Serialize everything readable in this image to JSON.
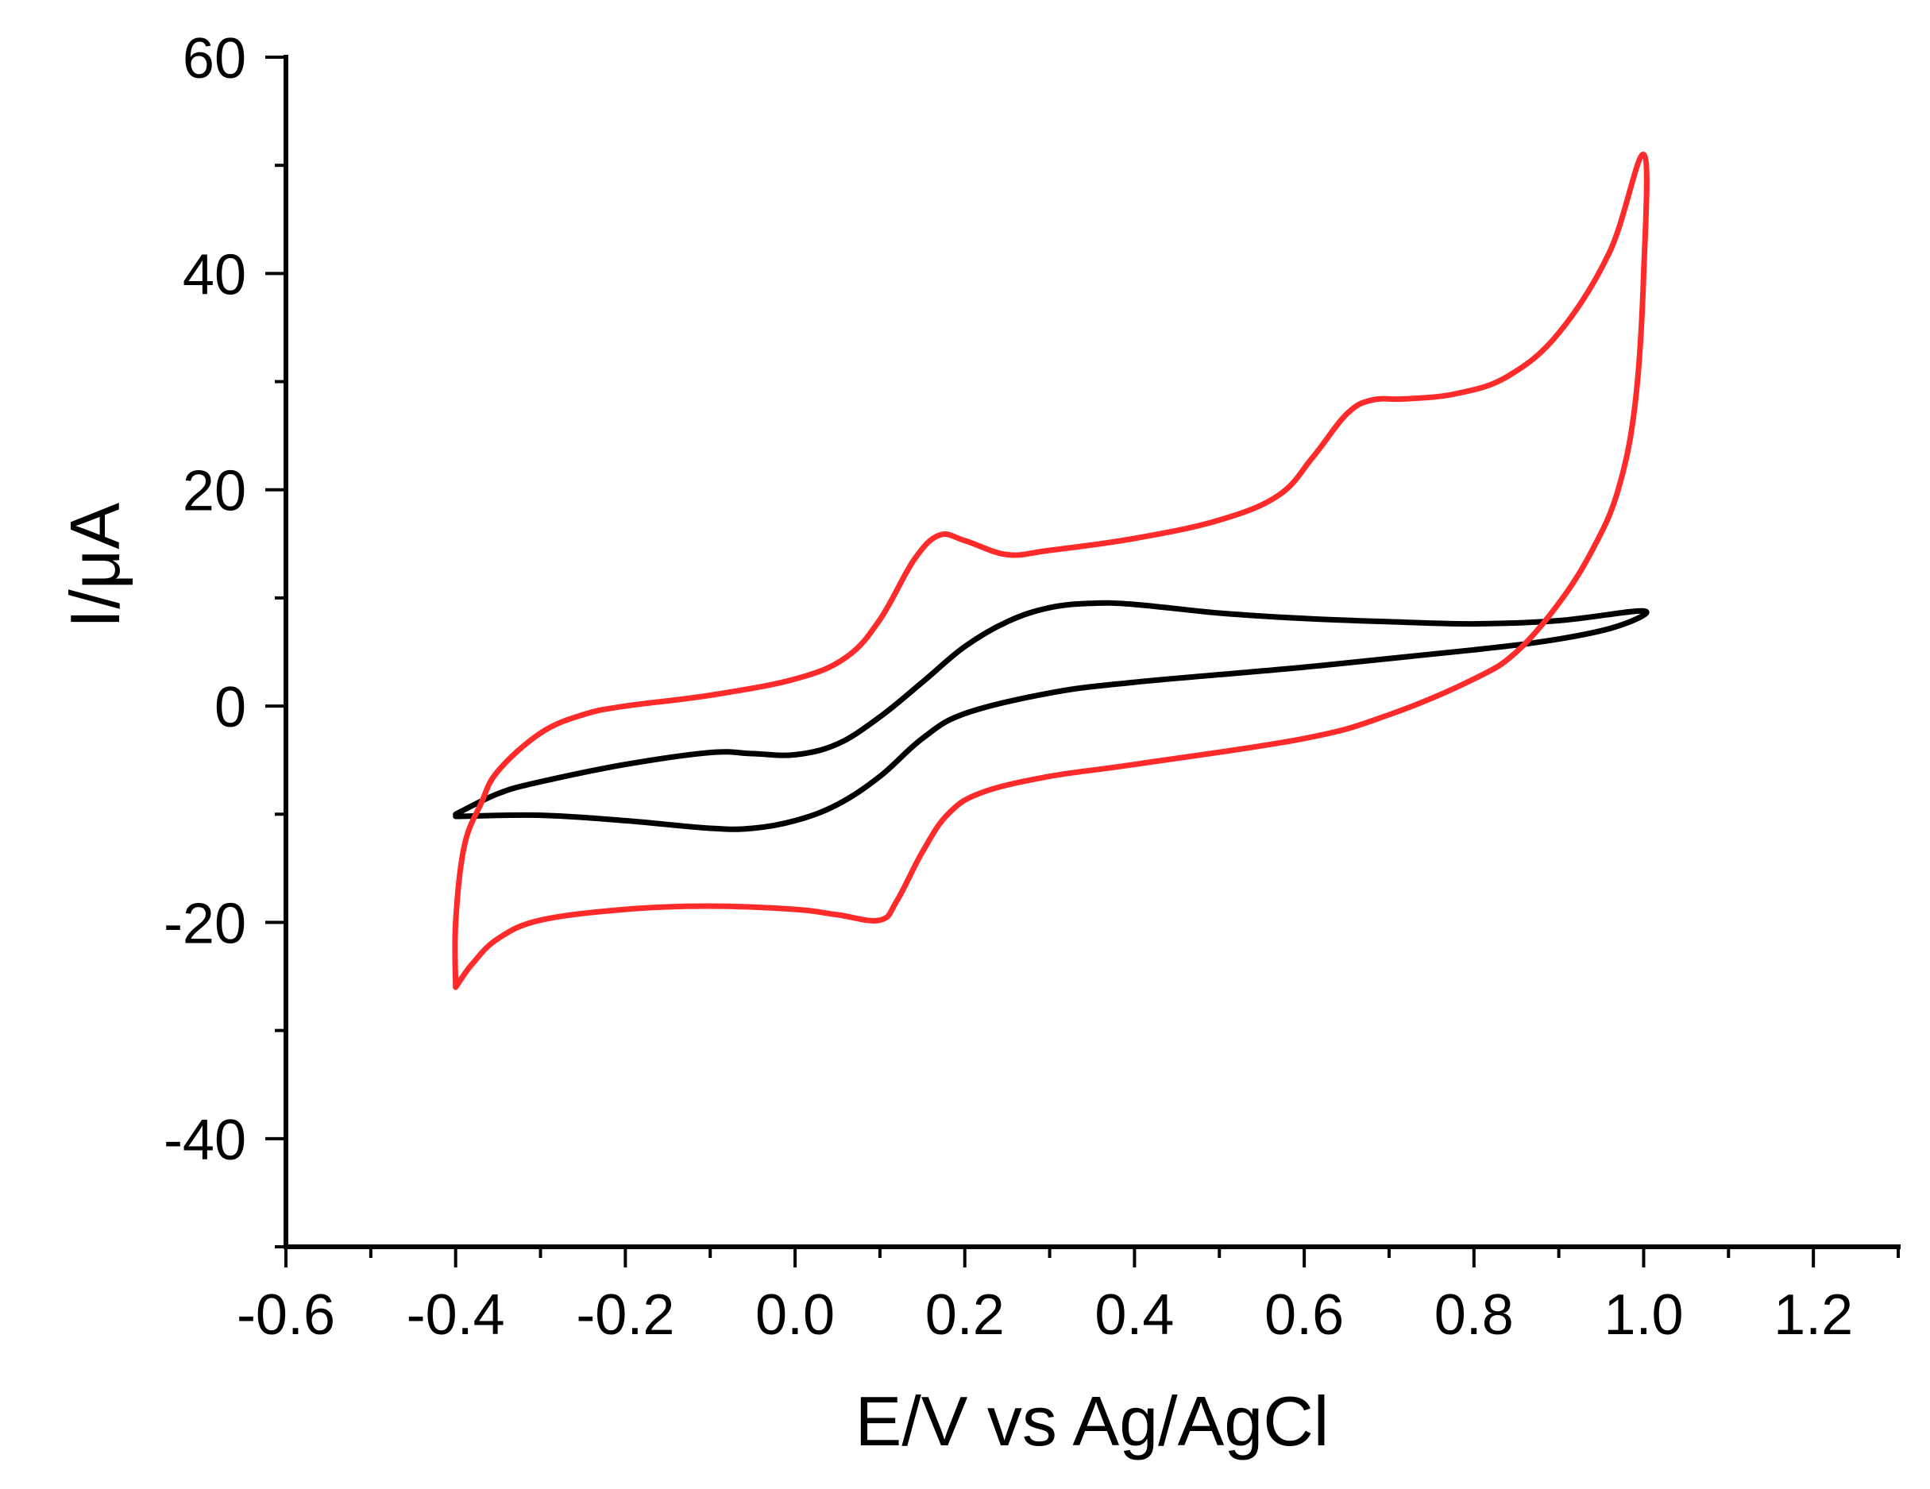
{
  "chart_data": {
    "type": "line",
    "title": "",
    "xlabel": "E/V vs Ag/AgCl",
    "ylabel": "I/μA",
    "xlim": [
      -0.6,
      1.3
    ],
    "ylim": [
      -50,
      60
    ],
    "x_ticks": [
      -0.6,
      -0.4,
      -0.2,
      0.0,
      0.2,
      0.4,
      0.6,
      0.8,
      1.0,
      1.2
    ],
    "x_tick_labels": [
      "-0.6",
      "-0.4",
      "-0.2",
      "0.0",
      "0.2",
      "0.4",
      "0.6",
      "0.8",
      "1.0",
      "1.2"
    ],
    "x_minor_step": 0.1,
    "y_ticks": [
      -40,
      -20,
      0,
      20,
      40,
      60
    ],
    "y_tick_labels": [
      "-40",
      "-20",
      "0",
      "20",
      "40",
      "60"
    ],
    "y_minor_step": 10,
    "grid": false,
    "legend": "none",
    "series": [
      {
        "name": "black-cv",
        "color": "#000000",
        "points": [
          [
            -0.4,
            -10.0
          ],
          [
            -0.35,
            -8.1
          ],
          [
            -0.3,
            -7.0
          ],
          [
            -0.2,
            -5.4
          ],
          [
            -0.1,
            -4.3
          ],
          [
            -0.05,
            -4.4
          ],
          [
            0.0,
            -4.5
          ],
          [
            0.05,
            -3.5
          ],
          [
            0.1,
            -1.0
          ],
          [
            0.15,
            2.2
          ],
          [
            0.2,
            5.5
          ],
          [
            0.25,
            7.8
          ],
          [
            0.3,
            9.1
          ],
          [
            0.35,
            9.5
          ],
          [
            0.4,
            9.4
          ],
          [
            0.5,
            8.6
          ],
          [
            0.6,
            8.1
          ],
          [
            0.7,
            7.8
          ],
          [
            0.8,
            7.6
          ],
          [
            0.9,
            7.9
          ],
          [
            1.0,
            8.8
          ],
          [
            0.97,
            7.4
          ],
          [
            0.9,
            6.2
          ],
          [
            0.8,
            5.2
          ],
          [
            0.6,
            3.6
          ],
          [
            0.4,
            2.2
          ],
          [
            0.3,
            1.2
          ],
          [
            0.2,
            -0.7
          ],
          [
            0.15,
            -3.0
          ],
          [
            0.1,
            -6.5
          ],
          [
            0.05,
            -9.1
          ],
          [
            0.0,
            -10.6
          ],
          [
            -0.05,
            -11.3
          ],
          [
            -0.1,
            -11.3
          ],
          [
            -0.2,
            -10.6
          ],
          [
            -0.3,
            -10.1
          ],
          [
            -0.4,
            -10.2
          ]
        ]
      },
      {
        "name": "red-cv",
        "color": "#ff2a2a",
        "points": [
          [
            -0.4,
            -26.0
          ],
          [
            -0.4,
            -20.0
          ],
          [
            -0.39,
            -13.0
          ],
          [
            -0.37,
            -9.0
          ],
          [
            -0.35,
            -6.0
          ],
          [
            -0.3,
            -2.5
          ],
          [
            -0.25,
            -0.8
          ],
          [
            -0.2,
            0.0
          ],
          [
            -0.1,
            1.0
          ],
          [
            0.0,
            2.5
          ],
          [
            0.06,
            4.5
          ],
          [
            0.1,
            8.0
          ],
          [
            0.14,
            13.5
          ],
          [
            0.17,
            15.8
          ],
          [
            0.2,
            15.3
          ],
          [
            0.25,
            14.0
          ],
          [
            0.3,
            14.4
          ],
          [
            0.4,
            15.5
          ],
          [
            0.5,
            17.2
          ],
          [
            0.57,
            19.5
          ],
          [
            0.61,
            23.0
          ],
          [
            0.65,
            27.0
          ],
          [
            0.68,
            28.3
          ],
          [
            0.72,
            28.4
          ],
          [
            0.78,
            28.9
          ],
          [
            0.84,
            30.5
          ],
          [
            0.9,
            34.5
          ],
          [
            0.96,
            42.0
          ],
          [
            1.0,
            51.0
          ],
          [
            1.0,
            40.0
          ],
          [
            0.99,
            28.0
          ],
          [
            0.97,
            20.0
          ],
          [
            0.94,
            14.5
          ],
          [
            0.9,
            9.5
          ],
          [
            0.85,
            5.0
          ],
          [
            0.8,
            2.5
          ],
          [
            0.7,
            -0.8
          ],
          [
            0.6,
            -3.0
          ],
          [
            0.4,
            -5.4
          ],
          [
            0.3,
            -6.5
          ],
          [
            0.22,
            -8.0
          ],
          [
            0.18,
            -10.0
          ],
          [
            0.15,
            -13.5
          ],
          [
            0.12,
            -18.0
          ],
          [
            0.1,
            -19.8
          ],
          [
            0.05,
            -19.3
          ],
          [
            0.0,
            -18.8
          ],
          [
            -0.1,
            -18.5
          ],
          [
            -0.2,
            -18.8
          ],
          [
            -0.3,
            -19.8
          ],
          [
            -0.35,
            -21.5
          ],
          [
            -0.38,
            -23.8
          ],
          [
            -0.4,
            -26.0
          ]
        ]
      }
    ]
  }
}
